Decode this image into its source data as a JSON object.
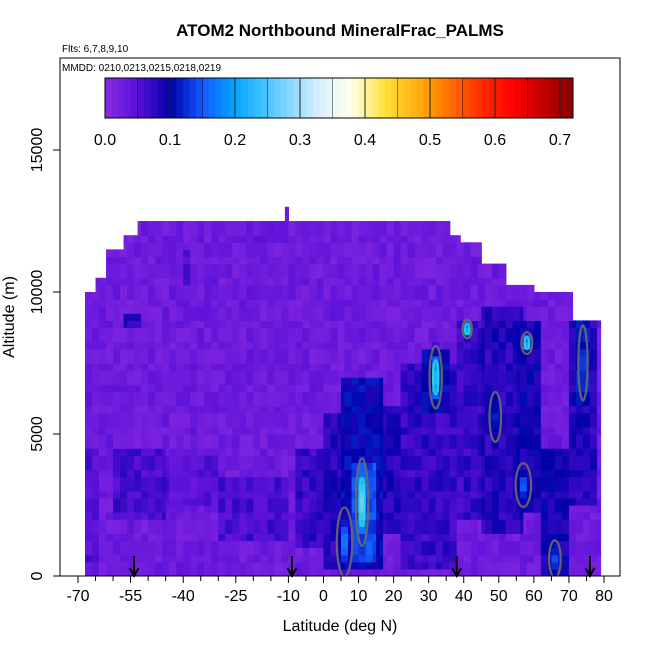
{
  "chart_data": {
    "type": "heatmap",
    "title": "ATOM2 Northbound MineralFrac_PALMS",
    "flights_label": "Flts: 6,7,8,9,10",
    "dates_label": "MMDD: 0210,0213,0215,0218,0219",
    "xlabel": "Latitude (deg N)",
    "ylabel": "Altitude (m)",
    "xlim": [
      -70,
      85
    ],
    "ylim": [
      0,
      17500
    ],
    "x_ticks": [
      {
        "value": -70,
        "label": "-70"
      },
      {
        "value": -55,
        "label": "-55"
      },
      {
        "value": -40,
        "label": "-40"
      },
      {
        "value": -25,
        "label": "-25"
      },
      {
        "value": -10,
        "label": "-10"
      },
      {
        "value": 0,
        "label": "0"
      },
      {
        "value": 10,
        "label": "10"
      },
      {
        "value": 20,
        "label": "20"
      },
      {
        "value": 30,
        "label": "30"
      },
      {
        "value": 40,
        "label": "40"
      },
      {
        "value": 50,
        "label": "50"
      },
      {
        "value": 60,
        "label": "60"
      },
      {
        "value": 70,
        "label": "70"
      },
      {
        "value": 80,
        "label": "80"
      }
    ],
    "y_ticks": [
      {
        "value": 0,
        "label": "0"
      },
      {
        "value": 5000,
        "label": "5000"
      },
      {
        "value": 10000,
        "label": "10000"
      },
      {
        "value": 15000,
        "label": "15000"
      }
    ],
    "colorbar": {
      "min": 0.0,
      "max": 0.72,
      "ticks": [
        {
          "value": 0.0,
          "label": "0.0"
        },
        {
          "value": 0.1,
          "label": "0.1"
        },
        {
          "value": 0.2,
          "label": "0.2"
        },
        {
          "value": 0.3,
          "label": "0.3"
        },
        {
          "value": 0.4,
          "label": "0.4"
        },
        {
          "value": 0.5,
          "label": "0.5"
        },
        {
          "value": 0.6,
          "label": "0.6"
        },
        {
          "value": 0.7,
          "label": "0.7"
        }
      ],
      "stops": [
        {
          "value": 0.0,
          "color": "#8a2be2"
        },
        {
          "value": 0.05,
          "color": "#5a10d8"
        },
        {
          "value": 0.1,
          "color": "#0000a8"
        },
        {
          "value": 0.15,
          "color": "#1458ff"
        },
        {
          "value": 0.2,
          "color": "#00a8ff"
        },
        {
          "value": 0.27,
          "color": "#6fcfff"
        },
        {
          "value": 0.33,
          "color": "#d8f2ff"
        },
        {
          "value": 0.38,
          "color": "#ffffe8"
        },
        {
          "value": 0.43,
          "color": "#ffe23c"
        },
        {
          "value": 0.5,
          "color": "#ff9a00"
        },
        {
          "value": 0.58,
          "color": "#ff2a00"
        },
        {
          "value": 0.63,
          "color": "#ff0000"
        },
        {
          "value": 0.72,
          "color": "#880000"
        }
      ]
    },
    "flight_markers_lat": [
      -54,
      -9,
      38,
      76
    ],
    "coverage_top": [
      {
        "lat_start": -68,
        "lat_end": -65,
        "top_alt": 10000
      },
      {
        "lat_start": -65,
        "lat_end": -62,
        "top_alt": 10500
      },
      {
        "lat_start": -62,
        "lat_end": -57,
        "top_alt": 11300
      },
      {
        "lat_start": -57,
        "lat_end": -53,
        "top_alt": 11800
      },
      {
        "lat_start": -53,
        "lat_end": -11,
        "top_alt": 12400
      },
      {
        "lat_start": -11,
        "lat_end": -10,
        "top_alt": 12900
      },
      {
        "lat_start": -10,
        "lat_end": 16,
        "top_alt": 12400
      },
      {
        "lat_start": 16,
        "lat_end": 36,
        "top_alt": 12400
      },
      {
        "lat_start": 36,
        "lat_end": 39,
        "top_alt": 12000
      },
      {
        "lat_start": 39,
        "lat_end": 45,
        "top_alt": 11700
      },
      {
        "lat_start": 45,
        "lat_end": 52,
        "top_alt": 10800
      },
      {
        "lat_start": 52,
        "lat_end": 60,
        "top_alt": 10200
      },
      {
        "lat_start": 60,
        "lat_end": 71,
        "top_alt": 10000
      },
      {
        "lat_start": 71,
        "lat_end": 79,
        "top_alt": 9000
      }
    ],
    "background_value": 0.03,
    "fields": [
      {
        "lat_start": -68,
        "lat_end": -64,
        "alt_start": 0,
        "alt_end": 4500,
        "value": 0.05
      },
      {
        "lat_start": -60,
        "lat_end": -45,
        "alt_start": 2000,
        "alt_end": 4500,
        "value": 0.06
      },
      {
        "lat_start": -45,
        "lat_end": -30,
        "alt_start": 2500,
        "alt_end": 4200,
        "value": 0.05
      },
      {
        "lat_start": -30,
        "lat_end": -10,
        "alt_start": 1200,
        "alt_end": 3500,
        "value": 0.06
      },
      {
        "lat_start": -57,
        "lat_end": -52,
        "alt_start": 8800,
        "alt_end": 9300,
        "value": 0.08
      },
      {
        "lat_start": -40,
        "lat_end": -38,
        "alt_start": 10200,
        "alt_end": 11500,
        "value": 0.06
      },
      {
        "lat_start": -20,
        "lat_end": -16,
        "alt_start": 11200,
        "alt_end": 12000,
        "value": 0.05
      },
      {
        "lat_start": -8,
        "lat_end": 2,
        "alt_start": 1000,
        "alt_end": 4500,
        "value": 0.07
      },
      {
        "lat_start": 0,
        "lat_end": 5,
        "alt_start": 200,
        "alt_end": 5800,
        "value": 0.08
      },
      {
        "lat_start": 5,
        "lat_end": 17,
        "alt_start": 200,
        "alt_end": 7000,
        "value": 0.1
      },
      {
        "lat_start": 8,
        "lat_end": 15,
        "alt_start": 500,
        "alt_end": 4000,
        "value": 0.14
      },
      {
        "lat_start": 17,
        "lat_end": 22,
        "alt_start": 1500,
        "alt_end": 6000,
        "value": 0.08
      },
      {
        "lat_start": 22,
        "lat_end": 38,
        "alt_start": 200,
        "alt_end": 7500,
        "value": 0.07
      },
      {
        "lat_start": 28,
        "lat_end": 36,
        "alt_start": 5800,
        "alt_end": 8000,
        "value": 0.1
      },
      {
        "lat_start": 38,
        "lat_end": 45,
        "alt_start": 2000,
        "alt_end": 9000,
        "value": 0.07
      },
      {
        "lat_start": 45,
        "lat_end": 57,
        "alt_start": 1500,
        "alt_end": 9500,
        "value": 0.08
      },
      {
        "lat_start": 55,
        "lat_end": 62,
        "alt_start": 2200,
        "alt_end": 9000,
        "value": 0.09
      },
      {
        "lat_start": 62,
        "lat_end": 70,
        "alt_start": 0,
        "alt_end": 4500,
        "value": 0.09
      },
      {
        "lat_start": 70,
        "lat_end": 78,
        "alt_start": 2500,
        "alt_end": 9000,
        "value": 0.08
      },
      {
        "lat_start": 72,
        "lat_end": 76,
        "alt_start": 6000,
        "alt_end": 9000,
        "value": 0.11
      }
    ],
    "peaks": [
      {
        "lat": 11,
        "alt": 2600,
        "dlat": 1.6,
        "dalt": 1400,
        "value": 0.3
      },
      {
        "lat": 6,
        "alt": 1200,
        "dlat": 2.0,
        "dalt": 1100,
        "value": 0.18
      },
      {
        "lat": 32,
        "alt": 7000,
        "dlat": 1.6,
        "dalt": 1000,
        "value": 0.25
      },
      {
        "lat": 41,
        "alt": 8700,
        "dlat": 1.2,
        "dalt": 300,
        "value": 0.25
      },
      {
        "lat": 58,
        "alt": 8200,
        "dlat": 1.4,
        "dalt": 350,
        "value": 0.25
      },
      {
        "lat": 57,
        "alt": 3200,
        "dlat": 2.0,
        "dalt": 700,
        "value": 0.16
      },
      {
        "lat": 74,
        "alt": 7500,
        "dlat": 1.2,
        "dalt": 1200,
        "value": 0.16
      },
      {
        "lat": 66,
        "alt": 600,
        "dlat": 1.5,
        "dalt": 600,
        "value": 0.16
      },
      {
        "lat": 49,
        "alt": 5600,
        "dlat": 1.5,
        "dalt": 800,
        "value": 0.13
      }
    ]
  }
}
